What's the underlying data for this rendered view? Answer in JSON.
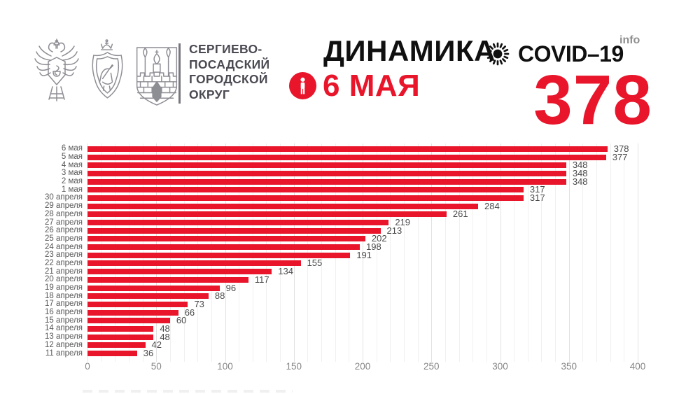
{
  "org": {
    "name_lines": [
      "СЕРГИЕВО-",
      "ПОСАДСКИЙ",
      "ГОРОДСКОЙ",
      "ОКРУГ"
    ]
  },
  "header": {
    "title": "ДИНАМИКА",
    "brand": "COVID–19",
    "brand_sup": "info",
    "date_label": "6 МАЯ",
    "total": "378"
  },
  "icons": {
    "left_emblems": [
      "health-ministry-eagle-emblem",
      "moscow-oblast-emblem",
      "sergiev-posad-emblem"
    ],
    "virus": "virus-icon",
    "person": "person-icon"
  },
  "colors": {
    "accent_red": "#e8152b",
    "title_black": "#101010",
    "org_text_gray": "#4a4a52",
    "date_label_gray": "#595959",
    "value_label_gray": "#4a4a4a",
    "tick_gray": "#868686",
    "emblem_gray": "#8d8d94",
    "grid_minor": "#f0f0f0",
    "grid_major": "#e2e2e2"
  },
  "chart_data": {
    "type": "bar",
    "orientation": "horizontal",
    "categories": [
      "6 мая",
      "5 мая",
      "4 мая",
      "3 мая",
      "2 мая",
      "1 мая",
      "30 апреля",
      "29 апреля",
      "28 апреля",
      "27 апреля",
      "26 апреля",
      "25 апреля",
      "24 апреля",
      "23 апреля",
      "22 апреля",
      "21 апреля",
      "20 апреля",
      "19 апреля",
      "18 апреля",
      "17 апреля",
      "16 апреля",
      "15 апреля",
      "14 апреля",
      "13 апреля",
      "12 апреля",
      "11 апреля"
    ],
    "values": [
      378,
      377,
      348,
      348,
      348,
      317,
      317,
      284,
      261,
      219,
      213,
      202,
      198,
      191,
      155,
      134,
      117,
      96,
      88,
      73,
      66,
      60,
      48,
      48,
      42,
      36
    ],
    "xlim": [
      0,
      400
    ],
    "xticks": [
      0,
      50,
      100,
      150,
      200,
      250,
      300,
      350,
      400
    ],
    "minor_grid_step": 10,
    "major_grid_step": 50,
    "grid": "vertical minor+major, no axis lines",
    "legend": "none",
    "value_labels": true,
    "bar_color": "#e8152b"
  }
}
